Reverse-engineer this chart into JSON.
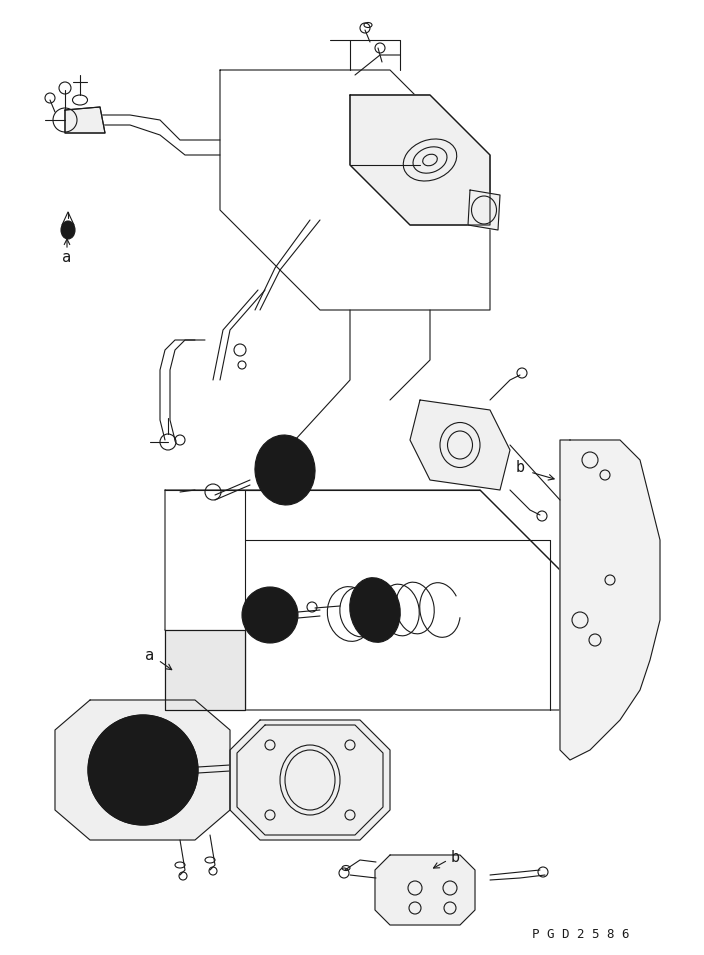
{
  "bg_color": "#ffffff",
  "line_color": "#1a1a1a",
  "line_width": 0.8,
  "fig_width": 7.04,
  "fig_height": 9.55,
  "dpi": 100,
  "watermark": "P G D 2 5 8 6",
  "label_a1": "a",
  "label_a2": "a",
  "label_b1": "b",
  "label_b2": "b",
  "font_size_label": 11,
  "font_size_watermark": 9
}
